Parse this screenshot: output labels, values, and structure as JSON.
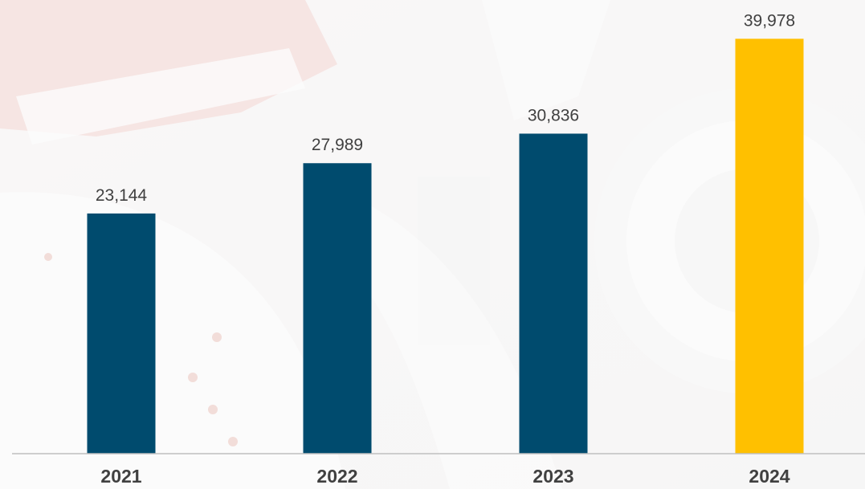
{
  "chart_data": {
    "type": "bar",
    "title": "",
    "xlabel": "",
    "ylabel": "",
    "categories": [
      "2021",
      "2022",
      "2023",
      "2024"
    ],
    "values": [
      23144,
      27989,
      30836,
      39978
    ],
    "value_labels": [
      "23,144",
      "27,989",
      "30,836",
      "39,978"
    ],
    "ylim": [
      0,
      40000
    ],
    "grid": false,
    "legend": "none",
    "colors": {
      "default_bar": "#004b6e",
      "highlight_bar": "#ffc000",
      "axis_line": "#bfbfbf",
      "text": "#404040"
    },
    "highlight_category": "2024"
  }
}
